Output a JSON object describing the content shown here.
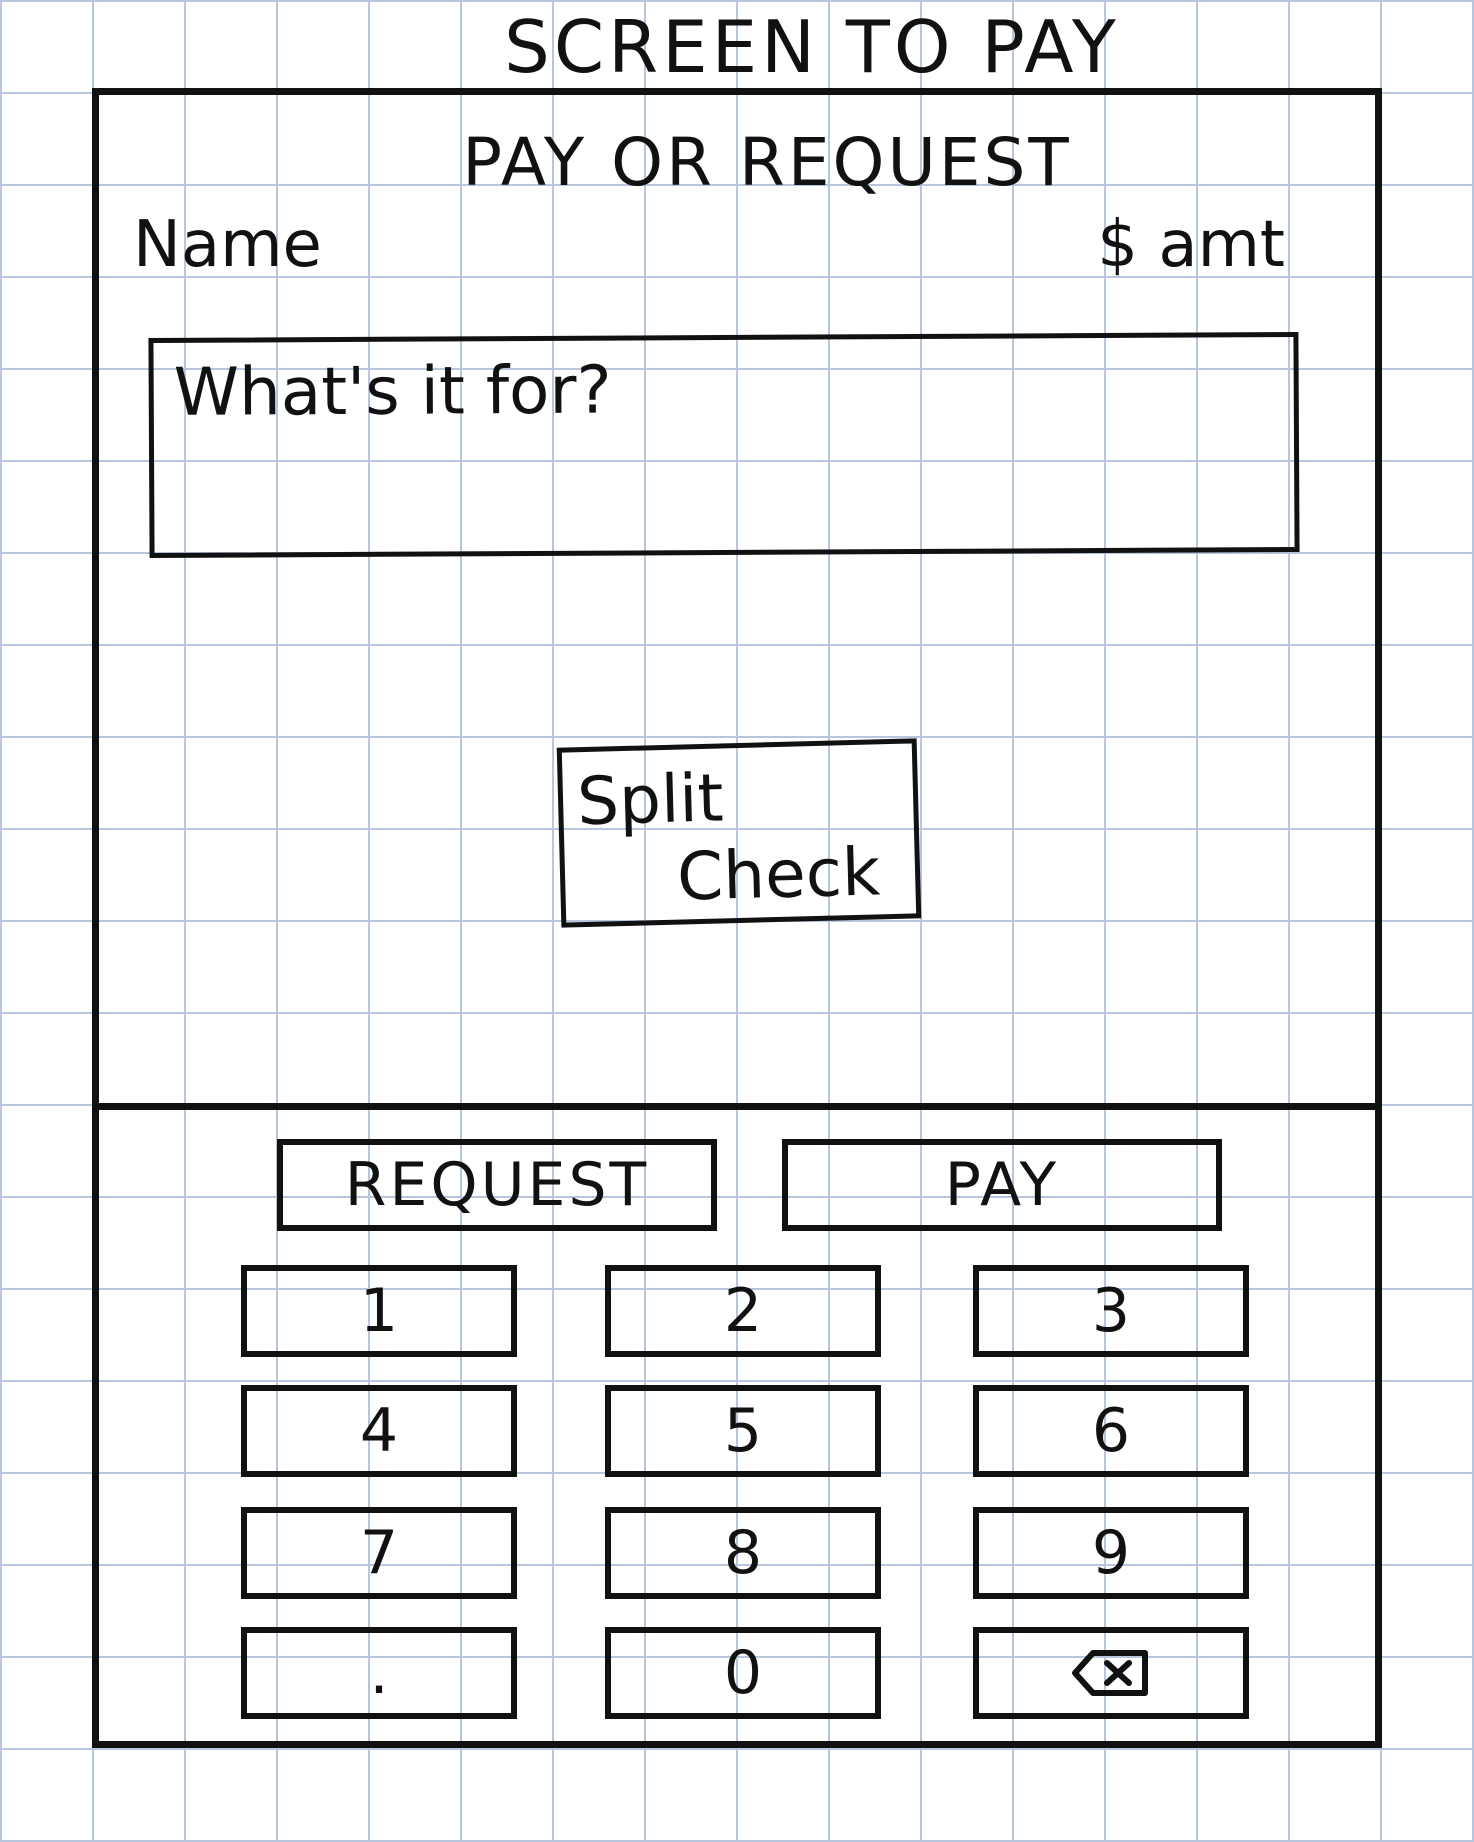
{
  "page": {
    "title": "SCREEN TO PAY"
  },
  "screen": {
    "heading": "PAY OR REQUEST",
    "recipient_label": "Name",
    "amount_label": "$ amt",
    "note_input": {
      "placeholder": "What's it for?"
    },
    "split_check": {
      "line1": "Split",
      "line2": "Check"
    }
  },
  "actions": {
    "request_label": "REQUEST",
    "pay_label": "PAY"
  },
  "keypad": {
    "keys": [
      "1",
      "2",
      "3",
      "4",
      "5",
      "6",
      "7",
      "8",
      "9",
      ".",
      "0"
    ],
    "backspace_icon": "backspace-icon"
  }
}
